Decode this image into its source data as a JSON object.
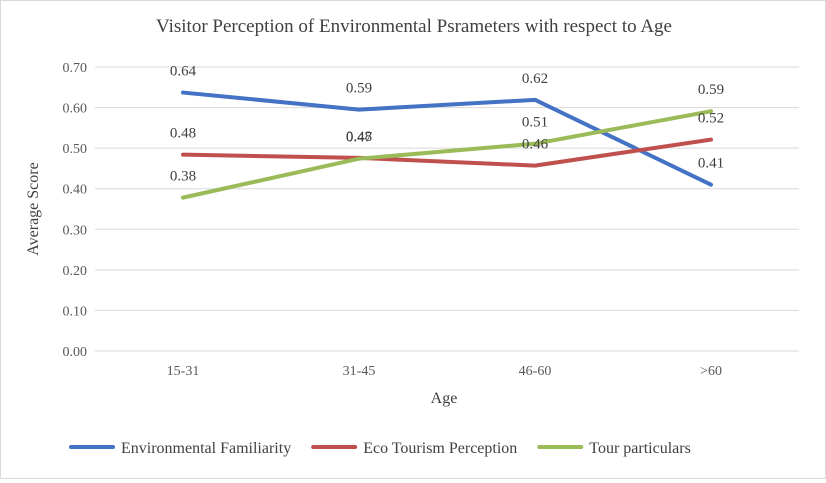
{
  "chart_data": {
    "type": "line",
    "title": "Visitor Perception of Environmental Psrameters with respect to Age",
    "xlabel": "Age",
    "ylabel": "Average Score",
    "categories": [
      "15-31",
      "31-45",
      "46-60",
      ">60"
    ],
    "ylim": [
      0,
      0.7
    ],
    "yticks": [
      0.0,
      0.1,
      0.2,
      0.3,
      0.4,
      0.5,
      0.6,
      0.7
    ],
    "ytick_labels": [
      "0.00",
      "0.10",
      "0.20",
      "0.30",
      "0.40",
      "0.50",
      "0.60",
      "0.70"
    ],
    "grid": true,
    "legend_position": "bottom",
    "series": [
      {
        "name": "Environmental Familiarity",
        "color": "#4472c4",
        "values": [
          0.637,
          0.595,
          0.619,
          0.41
        ],
        "labels": [
          "0.64",
          "0.59",
          "0.62",
          "0.41"
        ]
      },
      {
        "name": "Eco Tourism Perception",
        "color": "#c0504d",
        "values": [
          0.484,
          0.476,
          0.457,
          0.521
        ],
        "labels": [
          "0.48",
          "0.48",
          "0.46",
          "0.52"
        ]
      },
      {
        "name": "Tour particulars",
        "color": "#9bbb59",
        "values": [
          0.378,
          0.474,
          0.511,
          0.591
        ],
        "labels": [
          "0.38",
          "0.47",
          "0.51",
          "0.59"
        ]
      }
    ]
  }
}
